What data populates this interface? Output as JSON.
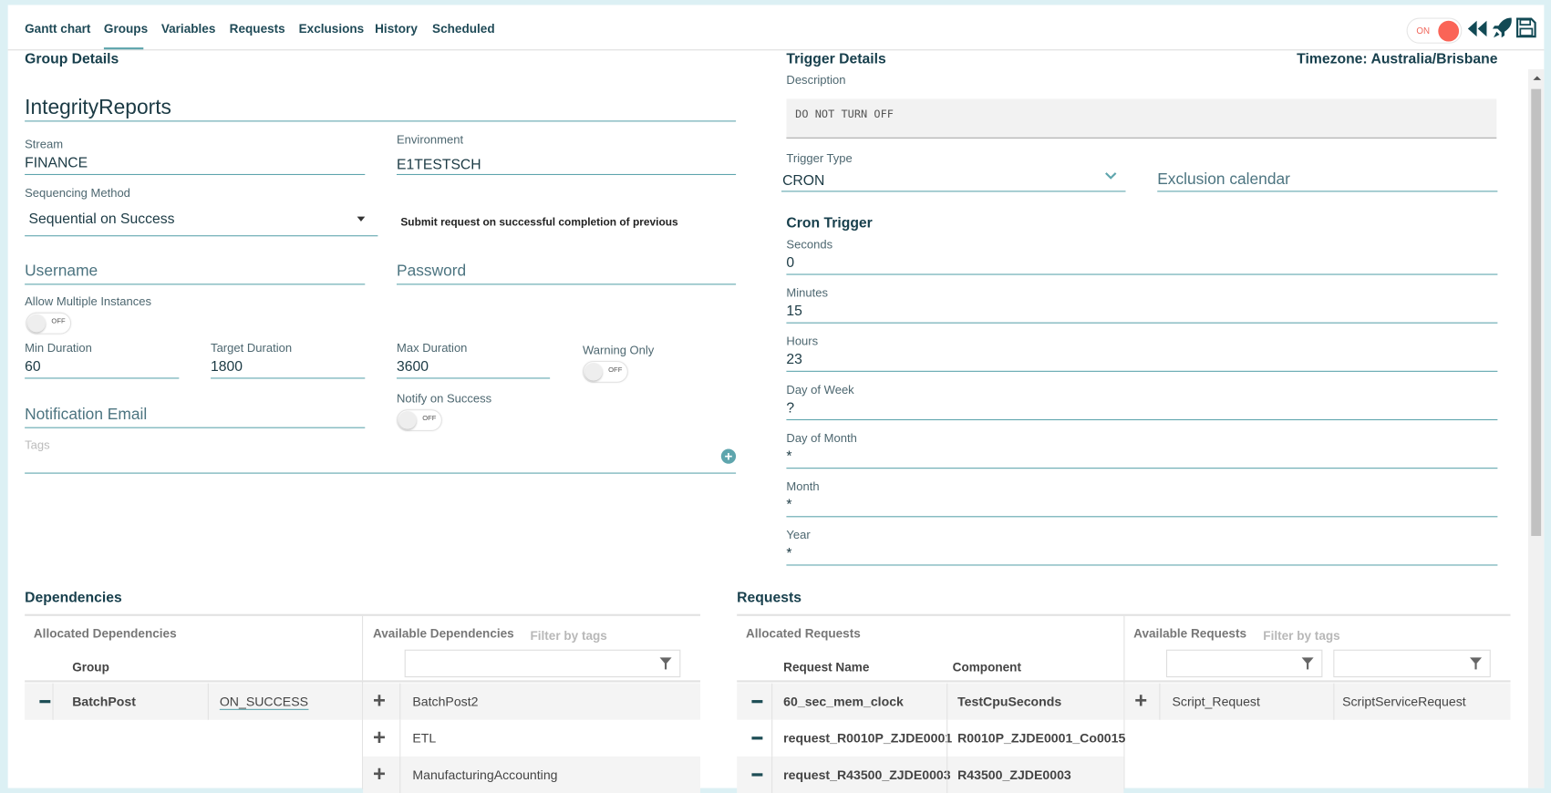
{
  "nav": {
    "tabs": [
      "Gantt chart",
      "Groups",
      "Variables",
      "Requests",
      "Exclusions",
      "History",
      "Scheduled"
    ],
    "active": "Groups"
  },
  "toolbar": {
    "toggle_label": "ON",
    "toggle_on": true,
    "icons": [
      "rewind-icon",
      "rocket-icon",
      "save-icon"
    ]
  },
  "group": {
    "heading": "Group Details",
    "name": "IntegrityReports",
    "stream_label": "Stream",
    "stream": "FINANCE",
    "environment_label": "Environment",
    "environment": "E1TESTSCH",
    "sequencing_label": "Sequencing Method",
    "sequencing": "Sequential on Success",
    "sequencing_hint": "Submit request on successful completion of previous",
    "username_placeholder": "Username",
    "password_placeholder": "Password",
    "allow_multiple_label": "Allow Multiple Instances",
    "allow_multiple": "OFF",
    "min_label": "Min Duration",
    "min": "60",
    "target_label": "Target Duration",
    "target": "1800",
    "max_label": "Max Duration",
    "max": "3600",
    "warning_label": "Warning Only",
    "warning": "OFF",
    "notify_label": "Notify on Success",
    "notify": "OFF",
    "email_placeholder": "Notification Email",
    "tags_placeholder": "Tags"
  },
  "trigger": {
    "heading": "Trigger Details",
    "timezone": "Timezone: Australia/Brisbane",
    "description_label": "Description",
    "description": "DO NOT TURN OFF",
    "type_label": "Trigger Type",
    "type": "CRON",
    "exclusion_placeholder": "Exclusion calendar",
    "cron_heading": "Cron Trigger",
    "fields": [
      {
        "label": "Seconds",
        "value": "0"
      },
      {
        "label": "Minutes",
        "value": "15"
      },
      {
        "label": "Hours",
        "value": "23"
      },
      {
        "label": "Day of Week",
        "value": "?"
      },
      {
        "label": "Day of Month",
        "value": "*"
      },
      {
        "label": "Month",
        "value": "*"
      },
      {
        "label": "Year",
        "value": "*"
      }
    ]
  },
  "dependencies": {
    "heading": "Dependencies",
    "allocated_title": "Allocated Dependencies",
    "group_col": "Group",
    "available_title": "Available Dependencies",
    "filter_label": "Filter by tags",
    "allocated": [
      {
        "group": "BatchPost",
        "condition": "ON_SUCCESS"
      }
    ],
    "available": [
      "BatchPost2",
      "ETL",
      "ManufacturingAccounting"
    ]
  },
  "requests": {
    "heading": "Requests",
    "allocated_title": "Allocated Requests",
    "name_col": "Request Name",
    "component_col": "Component",
    "available_title": "Available Requests",
    "filter_label": "Filter by tags",
    "allocated": [
      {
        "name": "60_sec_mem_clock",
        "component": "TestCpuSeconds"
      },
      {
        "name": "request_R0010P_ZJDE0001",
        "component": "R0010P_ZJDE0001_Co0015"
      },
      {
        "name": "request_R43500_ZJDE0003",
        "component": "R43500_ZJDE0003"
      }
    ],
    "available": [
      {
        "name": "Script_Request",
        "component": "ScriptServiceRequest"
      }
    ]
  }
}
